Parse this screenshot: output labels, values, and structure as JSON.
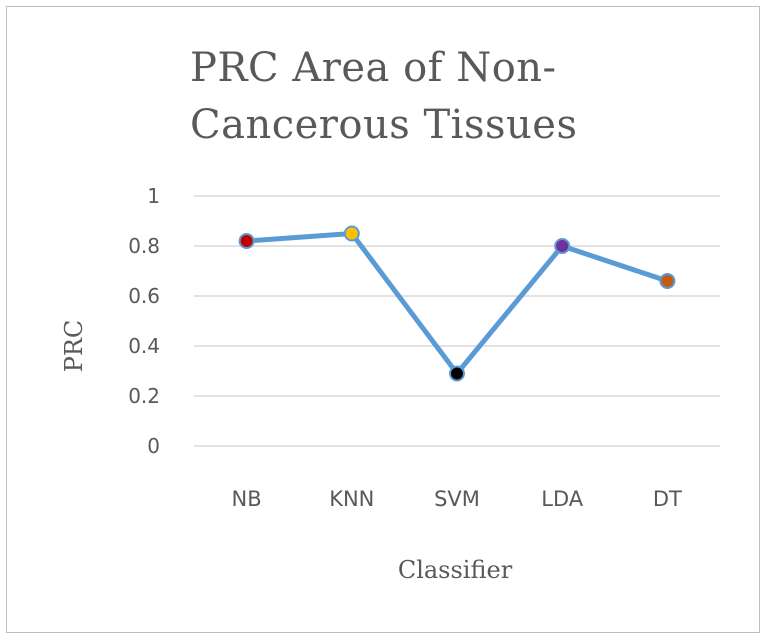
{
  "chart_data": {
    "type": "line",
    "title_line1": "PRC Area of Non-",
    "title_line2": "Cancerous Tissues",
    "xlabel": "Classifier",
    "ylabel": "PRC",
    "categories": [
      "NB",
      "KNN",
      "SVM",
      "LDA",
      "DT"
    ],
    "series": [
      {
        "values": [
          0.82,
          0.85,
          0.29,
          0.8,
          0.66
        ]
      }
    ],
    "ylim": [
      0,
      1
    ],
    "yticks": [
      "0",
      "0.2",
      "0.4",
      "0.6",
      "0.8",
      "1"
    ],
    "grid": true,
    "line_color": "#5b9bd5",
    "marker_colors": [
      "#c00000",
      "#ffc000",
      "#000000",
      "#7030a0",
      "#c55a11"
    ]
  }
}
